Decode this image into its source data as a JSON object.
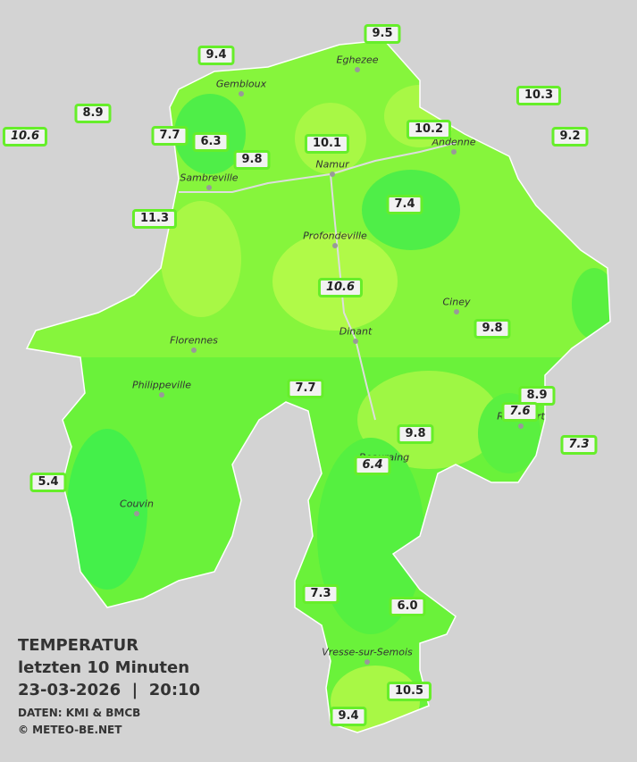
{
  "header": {
    "title": "TEMPERATUR",
    "subtitle": "letzten 10 Minuten",
    "datetime": "23-03-2026  |  20:10",
    "source": "DATEN: KMI & BMCB",
    "credit": "© METEO-BE.NET"
  },
  "cities": [
    "Eghezee",
    "Gembloux",
    "Andenne",
    "Namur",
    "Sambreville",
    "Profondeville",
    "Ciney",
    "Dinant",
    "Florennes",
    "Philippeville",
    "Rochefort",
    "Beauraing",
    "Couvin",
    "Vresse-sur-Semois"
  ],
  "stations": [
    {
      "value": "9.5",
      "italic": false
    },
    {
      "value": "9.4",
      "italic": false
    },
    {
      "value": "10.3",
      "italic": false
    },
    {
      "value": "8.9",
      "italic": false
    },
    {
      "value": "10.6",
      "italic": true
    },
    {
      "value": "7.7",
      "italic": false
    },
    {
      "value": "6.3",
      "italic": false
    },
    {
      "value": "10.1",
      "italic": false
    },
    {
      "value": "10.2",
      "italic": false
    },
    {
      "value": "9.2",
      "italic": false
    },
    {
      "value": "9.8",
      "italic": false
    },
    {
      "value": "7.4",
      "italic": false
    },
    {
      "value": "11.3",
      "italic": false
    },
    {
      "value": "10.6",
      "italic": true
    },
    {
      "value": "9.8",
      "italic": false
    },
    {
      "value": "7.7",
      "italic": false
    },
    {
      "value": "8.9",
      "italic": false
    },
    {
      "value": "7.6",
      "italic": true
    },
    {
      "value": "7.3",
      "italic": true
    },
    {
      "value": "9.8",
      "italic": false
    },
    {
      "value": "6.4",
      "italic": true
    },
    {
      "value": "5.4",
      "italic": false
    },
    {
      "value": "7.3",
      "italic": false
    },
    {
      "value": "6.0",
      "italic": false
    },
    {
      "value": "10.5",
      "italic": false
    },
    {
      "value": "9.4",
      "italic": false
    }
  ]
}
